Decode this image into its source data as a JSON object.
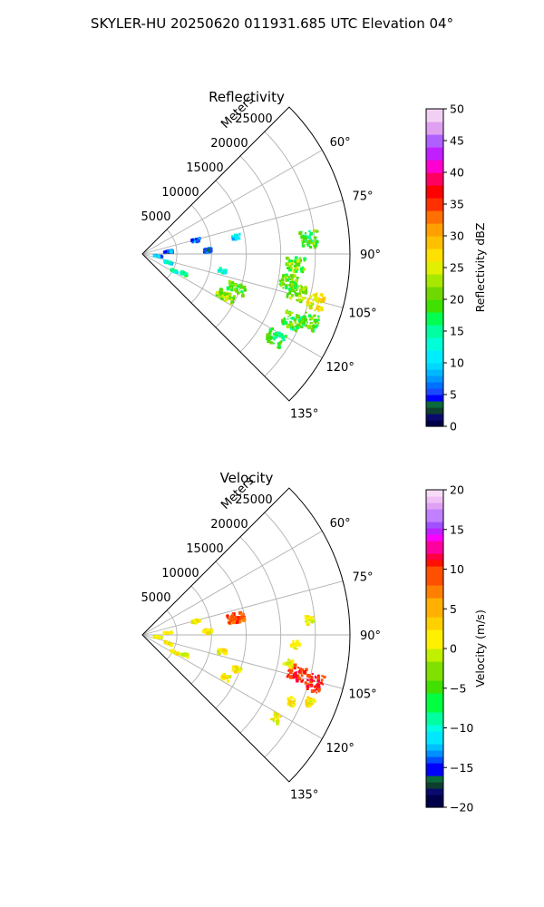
{
  "suptitle": "SKYLER-HU  20250620  011931.685 UTC Elevation 04°",
  "chart_data": [
    {
      "type": "polar-sector",
      "title": "Reflectivity",
      "radial_label": "Meters",
      "radial_ticks": [
        5000,
        10000,
        15000,
        20000,
        25000
      ],
      "radial_tick_labels": [
        "5000",
        "10000",
        "15000",
        "20000",
        "25000"
      ],
      "rmax": 30000,
      "theta_range_deg": [
        45,
        135
      ],
      "theta_ticks": [
        60,
        75,
        90,
        105,
        120,
        135
      ],
      "theta_tick_labels": [
        "60°",
        "75°",
        "90°",
        "105°",
        "120°",
        "135°"
      ],
      "colorbar": {
        "label": "Reflectivity dBZ",
        "range": [
          0,
          50
        ],
        "ticks": [
          0,
          5,
          10,
          15,
          20,
          25,
          30,
          35,
          40,
          45,
          50
        ],
        "tick_labels": [
          "0",
          "5",
          "10",
          "15",
          "20",
          "25",
          "30",
          "35",
          "40",
          "45",
          "50"
        ]
      },
      "clusters": [
        {
          "theta": 118,
          "r": 5200,
          "value": 15
        },
        {
          "theta": 115,
          "r": 6800,
          "value": 16
        },
        {
          "theta": 108,
          "r": 4000,
          "value": 12
        },
        {
          "theta": 98,
          "r": 2300,
          "value": 8
        },
        {
          "theta": 85,
          "r": 3800,
          "value": 6
        },
        {
          "theta": 76,
          "r": 8000,
          "value": 6
        },
        {
          "theta": 87,
          "r": 9400,
          "value": 4
        },
        {
          "theta": 102,
          "r": 11800,
          "value": 11
        },
        {
          "theta": 110,
          "r": 14500,
          "value": 20
        },
        {
          "theta": 117,
          "r": 13500,
          "value": 22
        },
        {
          "theta": 104,
          "r": 23000,
          "value": 22
        },
        {
          "theta": 105.5,
          "r": 25900,
          "value": 26
        },
        {
          "theta": 101,
          "r": 21500,
          "value": 20
        },
        {
          "theta": 94,
          "r": 22200,
          "value": 21
        },
        {
          "theta": 85,
          "r": 24300,
          "value": 19
        },
        {
          "theta": 114,
          "r": 23600,
          "value": 19
        },
        {
          "theta": 112,
          "r": 26100,
          "value": 19
        },
        {
          "theta": 122,
          "r": 22800,
          "value": 18
        },
        {
          "theta": 80,
          "r": 13800,
          "value": 11
        }
      ]
    },
    {
      "type": "polar-sector",
      "title": "Velocity",
      "radial_label": "Meters",
      "radial_ticks": [
        5000,
        10000,
        15000,
        20000,
        25000
      ],
      "radial_tick_labels": [
        "5000",
        "10000",
        "15000",
        "20000",
        "25000"
      ],
      "rmax": 30000,
      "theta_range_deg": [
        45,
        135
      ],
      "theta_ticks": [
        60,
        75,
        90,
        105,
        120,
        135
      ],
      "theta_tick_labels": [
        "60°",
        "75°",
        "90°",
        "105°",
        "120°",
        "135°"
      ],
      "colorbar": {
        "label": "Velocity (m/s)",
        "range": [
          -20,
          20
        ],
        "ticks": [
          -20,
          -15,
          -10,
          -5,
          0,
          5,
          10,
          15,
          20
        ],
        "tick_labels": [
          "−20",
          "−15",
          "−10",
          "−5",
          "0",
          "5",
          "10",
          "15",
          "20"
        ]
      },
      "clusters": [
        {
          "theta": 118,
          "r": 5200,
          "value": 1
        },
        {
          "theta": 115,
          "r": 6800,
          "value": 1
        },
        {
          "theta": 108,
          "r": 4000,
          "value": 1
        },
        {
          "theta": 98,
          "r": 2300,
          "value": 1
        },
        {
          "theta": 85,
          "r": 3800,
          "value": 1
        },
        {
          "theta": 76,
          "r": 8000,
          "value": 1
        },
        {
          "theta": 87,
          "r": 9400,
          "value": 1
        },
        {
          "theta": 102,
          "r": 11800,
          "value": 1
        },
        {
          "theta": 110,
          "r": 14500,
          "value": 1
        },
        {
          "theta": 117,
          "r": 13500,
          "value": 1
        },
        {
          "theta": 104,
          "r": 23000,
          "value": 10
        },
        {
          "theta": 105.5,
          "r": 25900,
          "value": 10
        },
        {
          "theta": 101,
          "r": 21500,
          "value": 1
        },
        {
          "theta": 94,
          "r": 22200,
          "value": 1
        },
        {
          "theta": 85,
          "r": 24300,
          "value": 1
        },
        {
          "theta": 114,
          "r": 23600,
          "value": 1
        },
        {
          "theta": 112,
          "r": 26100,
          "value": 1
        },
        {
          "theta": 122,
          "r": 22800,
          "value": 1
        },
        {
          "theta": 80,
          "r": 13800,
          "value": 9
        }
      ]
    }
  ]
}
